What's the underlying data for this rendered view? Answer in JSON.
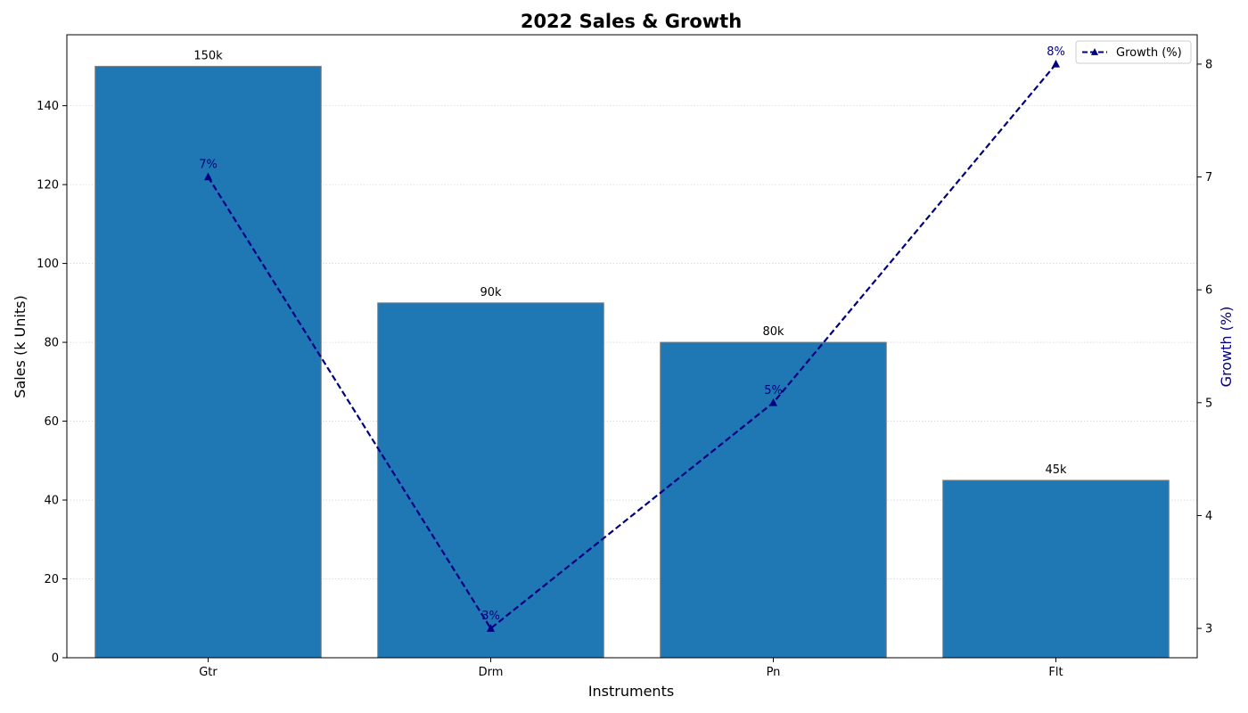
{
  "chart_data": {
    "type": "bar",
    "title": "2022 Sales & Growth",
    "xlabel": "Instruments",
    "ylabel": "Sales (k Units)",
    "y2label": "Growth (%)",
    "categories": [
      "Gtr",
      "Drm",
      "Pn",
      "Flt"
    ],
    "ylim": [
      0,
      158
    ],
    "y2lim": [
      2.74,
      8.26
    ],
    "yticks": [
      0,
      20,
      40,
      60,
      80,
      100,
      120,
      140
    ],
    "y2ticks": [
      3,
      4,
      5,
      6,
      7,
      8
    ],
    "grid": "horizontal dotted",
    "legend_position": "top-right",
    "series": [
      {
        "type": "bar",
        "axis": "left",
        "values": [
          150,
          90,
          80,
          45
        ],
        "labels": [
          "150k",
          "90k",
          "80k",
          "45k"
        ],
        "color": "#1f77b4",
        "edge_color": "#808080"
      },
      {
        "type": "line",
        "axis": "right",
        "name": "Growth (%)",
        "values": [
          7,
          3,
          5,
          8
        ],
        "labels": [
          "7%",
          "3%",
          "5%",
          "8%"
        ],
        "color": "#000080",
        "line_style": "dashed",
        "marker": "triangle"
      }
    ]
  }
}
